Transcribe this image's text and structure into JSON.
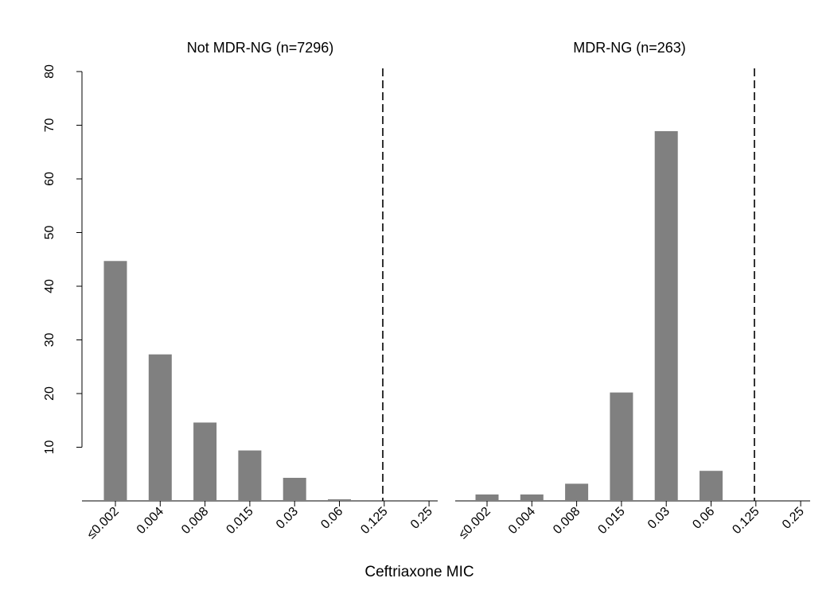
{
  "chart_data": {
    "type": "bar",
    "xlabel": "Ceftriaxone MIC",
    "ylabel": "",
    "ylim": [
      0,
      80
    ],
    "yticks": [
      10,
      20,
      30,
      40,
      50,
      60,
      70,
      80
    ],
    "categories": [
      "≤0.002",
      "0.004",
      "0.008",
      "0.015",
      "0.03",
      "0.06",
      "0.125",
      "0.25"
    ],
    "bar_color": "#808080",
    "grid": false,
    "reference_line": {
      "style": "dashed",
      "position": "between 0.06 and 0.125"
    },
    "panels": [
      {
        "title": "Not MDR-NG (n=7296)",
        "values": [
          44.7,
          27.3,
          14.6,
          9.4,
          4.3,
          0.3,
          0,
          0
        ]
      },
      {
        "title": "MDR-NG (n=263)",
        "values": [
          1.2,
          1.2,
          3.2,
          20.2,
          68.9,
          5.6,
          0,
          0
        ]
      }
    ]
  }
}
